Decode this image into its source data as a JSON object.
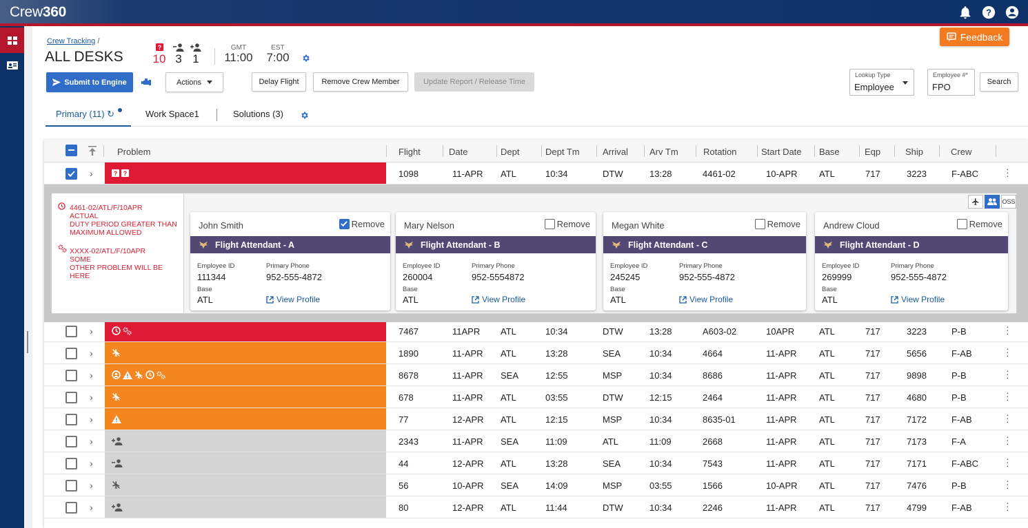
{
  "app": {
    "logo_light": "Crew",
    "logo_bold": "360"
  },
  "header": {
    "breadcrumb_link": "Crew Tracking",
    "breadcrumb_sep": "/",
    "title": "ALL DESKS",
    "stats": [
      {
        "icon": "question-alert-icon",
        "value": "10",
        "color": "#df1a34"
      },
      {
        "icon": "remove-person-icon",
        "value": "3"
      },
      {
        "icon": "add-person-icon",
        "value": "1"
      }
    ],
    "time_zones": [
      {
        "label": "GMT",
        "time": "11:00"
      },
      {
        "label": "EST",
        "time": "7:00"
      }
    ],
    "feedback": "Feedback"
  },
  "toolbar": {
    "submit": "Submit to Engine",
    "actions": "Actions",
    "delay_flight": "Delay Flight",
    "remove_crew": "Remove Crew Member",
    "update_report": "Update Report / Release Time",
    "lookup_type_label": "Lookup Type",
    "lookup_type_value": "Employee",
    "employee_label": "Employee #*",
    "employee_value": "FPO",
    "search": "Search"
  },
  "tabs": [
    {
      "label": "Primary (11)",
      "active": true
    },
    {
      "label": "Work Space1"
    },
    {
      "label": "Solutions (3)"
    }
  ],
  "columns": [
    "Problem",
    "Flight",
    "Date",
    "Dept",
    "Dept Tm",
    "Arrival",
    "Arv Tm",
    "Rotation",
    "Start Date",
    "Base",
    "Eqp",
    "Ship",
    "Crew"
  ],
  "rows": [
    {
      "flight": "1098",
      "date": "11-APR",
      "dept": "ATL",
      "dept_tm": "10:34",
      "arrival": "DTW",
      "arv_tm": "13:28",
      "rotation": "4461-02",
      "start": "10-APR",
      "base": "ATL",
      "eqp": "717",
      "ship": "3223",
      "crew": "F-ABC",
      "color": "red",
      "checked": true,
      "icons": [
        "question-icon",
        "question-icon"
      ]
    },
    {
      "flight": "7467",
      "date": "11APR",
      "dept": "ATL",
      "dept_tm": "10:34",
      "arrival": "DTW",
      "arv_tm": "13:28",
      "rotation": "A603-02",
      "start": "10APR",
      "base": "ATL",
      "eqp": "717",
      "ship": "3223",
      "crew": "P-B",
      "color": "red",
      "icons": [
        "clock-alert-icon",
        "gears-icon"
      ]
    },
    {
      "flight": "1890",
      "date": "11-APR",
      "dept": "ATL",
      "dept_tm": "13:28",
      "arrival": "SEA",
      "arv_tm": "10:34",
      "rotation": "4664",
      "start": "11-APR",
      "base": "ATL",
      "eqp": "717",
      "ship": "5656",
      "crew": "F-AB",
      "color": "orange",
      "icons": [
        "plane-off-icon"
      ]
    },
    {
      "flight": "8678",
      "date": "11-APR",
      "dept": "SEA",
      "dept_tm": "12:55",
      "arrival": "MSP",
      "arv_tm": "10:34",
      "rotation": "8686",
      "start": "11-APR",
      "base": "ATL",
      "eqp": "717",
      "ship": "9898",
      "crew": "P-B",
      "color": "orange",
      "icons": [
        "person-alert-icon",
        "warning-icon",
        "plane-off-icon",
        "clock-alert-icon",
        "gears-icon"
      ]
    },
    {
      "flight": "678",
      "date": "11-APR",
      "dept": "ATL",
      "dept_tm": "03:55",
      "arrival": "DTW",
      "arv_tm": "12:15",
      "rotation": "2464",
      "start": "11-APR",
      "base": "ATL",
      "eqp": "717",
      "ship": "4680",
      "crew": "P-B",
      "color": "orange",
      "icons": [
        "plane-off-icon"
      ]
    },
    {
      "flight": "77",
      "date": "12-APR",
      "dept": "ATL",
      "dept_tm": "12:15",
      "arrival": "MSP",
      "arv_tm": "10:34",
      "rotation": "8635-01",
      "start": "11-APR",
      "base": "ATL",
      "eqp": "717",
      "ship": "7172",
      "crew": "F-AB",
      "color": "orange",
      "icons": [
        "warning-icon"
      ]
    },
    {
      "flight": "2343",
      "date": "11-APR",
      "dept": "SEA",
      "dept_tm": "11:09",
      "arrival": "ATL",
      "arv_tm": "11:09",
      "rotation": "2668",
      "start": "11-APR",
      "base": "ATL",
      "eqp": "717",
      "ship": "7173",
      "crew": "F-A",
      "color": "grey",
      "icons": [
        "add-person-icon"
      ]
    },
    {
      "flight": "44",
      "date": "12-APR",
      "dept": "ATL",
      "dept_tm": "13:28",
      "arrival": "SEA",
      "arv_tm": "10:34",
      "rotation": "7543",
      "start": "11-APR",
      "base": "ATL",
      "eqp": "717",
      "ship": "7171",
      "crew": "F-ABC",
      "color": "grey",
      "icons": [
        "remove-person-icon"
      ]
    },
    {
      "flight": "56",
      "date": "10-APR",
      "dept": "SEA",
      "dept_tm": "14:09",
      "arrival": "MSP",
      "arv_tm": "03:55",
      "rotation": "1566",
      "start": "10-APR",
      "base": "ATL",
      "eqp": "717",
      "ship": "7476",
      "crew": "P-B",
      "color": "grey",
      "icons": [
        "plane-off-icon"
      ]
    },
    {
      "flight": "80",
      "date": "12-APR",
      "dept": "ATL",
      "dept_tm": "11:44",
      "arrival": "DTW",
      "arv_tm": "10:34",
      "rotation": "2246",
      "start": "11-APR",
      "base": "ATL",
      "eqp": "717",
      "ship": "4799",
      "crew": "F-AB",
      "color": "grey",
      "icons": [
        "add-person-icon"
      ]
    }
  ],
  "expanded": {
    "problems": [
      {
        "lines": [
          "4461-02/ATL/F/10APR",
          "ACTUAL",
          "DUTY PERIOD GREATER THAN",
          "MAXIMUM ALLOWED"
        ],
        "icon": "clock-alert-icon"
      },
      {
        "lines": [
          "XXXX-02/ATL/F/10APR",
          "SOME",
          "OTHER PROBLEM WILL BE",
          "HERE"
        ],
        "icon": "gears-icon"
      }
    ],
    "remove_label": "Remove",
    "employee_id_label": "Employee ID",
    "phone_label": "Primary Phone",
    "base_label": "Base",
    "view_profile": "View Profile",
    "mini_button_oss": "OSS",
    "crew": [
      {
        "name": "John Smith",
        "position": "Flight Attendant - A",
        "employee_id": "111344",
        "phone": "952-555-4872",
        "base": "ATL",
        "remove": true
      },
      {
        "name": "Mary Nelson",
        "position": "Flight Attendant - B",
        "employee_id": "260004",
        "phone": "952-5554872",
        "base": "ATL",
        "remove": false
      },
      {
        "name": "Megan White",
        "position": "Flight Attendant - C",
        "employee_id": "245245",
        "phone": "952-555-4872",
        "base": "ATL",
        "remove": false
      },
      {
        "name": "Andrew Cloud",
        "position": "Flight Attendant - D",
        "employee_id": "269999",
        "phone": "952-555-4872",
        "base": "ATL",
        "remove": false
      }
    ]
  },
  "colors": {
    "navy": "#0e3167",
    "red": "#df1a34",
    "orange": "#f5851f",
    "grey": "#d4d4d4",
    "accent": "#2f6dc9",
    "purple": "#534874",
    "feedback": "#f47a20"
  }
}
